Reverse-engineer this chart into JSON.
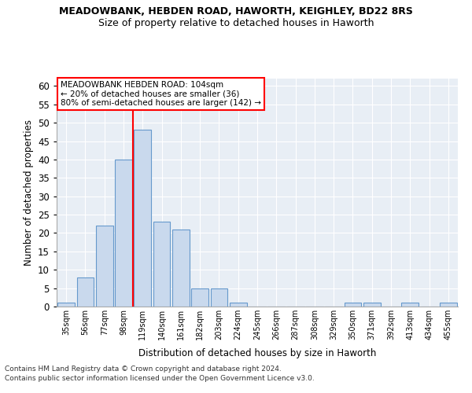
{
  "title1": "MEADOWBANK, HEBDEN ROAD, HAWORTH, KEIGHLEY, BD22 8RS",
  "title2": "Size of property relative to detached houses in Haworth",
  "xlabel": "Distribution of detached houses by size in Haworth",
  "ylabel": "Number of detached properties",
  "bin_labels": [
    "35sqm",
    "56sqm",
    "77sqm",
    "98sqm",
    "119sqm",
    "140sqm",
    "161sqm",
    "182sqm",
    "203sqm",
    "224sqm",
    "245sqm",
    "266sqm",
    "287sqm",
    "308sqm",
    "329sqm",
    "350sqm",
    "371sqm",
    "392sqm",
    "413sqm",
    "434sqm",
    "455sqm"
  ],
  "bar_values": [
    1,
    8,
    22,
    40,
    48,
    23,
    21,
    5,
    5,
    1,
    0,
    0,
    0,
    0,
    0,
    1,
    1,
    0,
    1,
    0,
    1
  ],
  "bar_color": "#c9d9ed",
  "bar_edge_color": "#6699cc",
  "redline_x": 3.5,
  "annotation_line1": "MEADOWBANK HEBDEN ROAD: 104sqm",
  "annotation_line2": "← 20% of detached houses are smaller (36)",
  "annotation_line3": "80% of semi-detached houses are larger (142) →",
  "annotation_box_color": "white",
  "annotation_box_edge_color": "red",
  "ylim": [
    0,
    62
  ],
  "yticks": [
    0,
    5,
    10,
    15,
    20,
    25,
    30,
    35,
    40,
    45,
    50,
    55,
    60
  ],
  "footer1": "Contains HM Land Registry data © Crown copyright and database right 2024.",
  "footer2": "Contains public sector information licensed under the Open Government Licence v3.0.",
  "bg_color": "#e8eef5"
}
